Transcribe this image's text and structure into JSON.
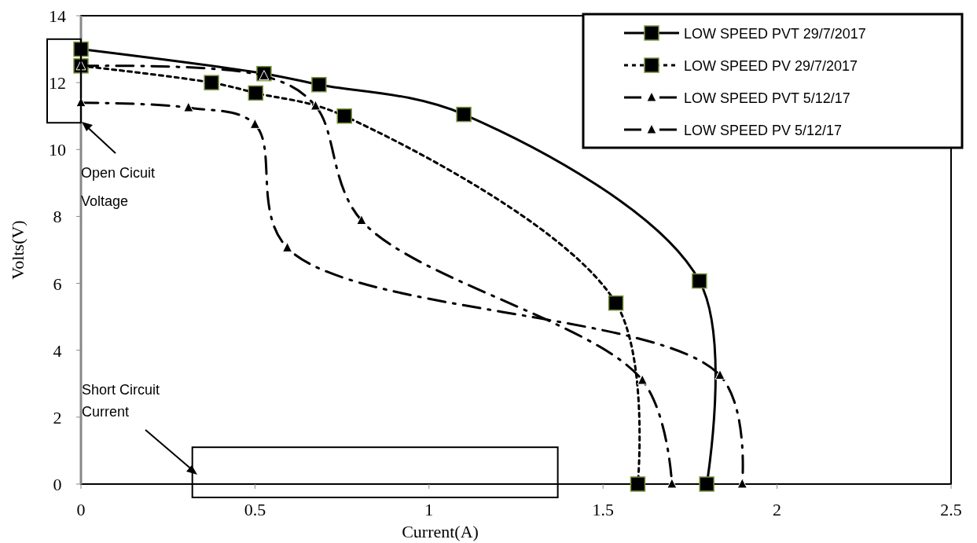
{
  "chart_data": {
    "type": "line",
    "xlabel": "Current(A)",
    "ylabel": "Volts(V)",
    "xlim": [
      0,
      2.5
    ],
    "xticks": [
      0,
      0.5,
      1,
      1.5,
      2,
      2.5
    ],
    "ylim": [
      0,
      14
    ],
    "yticks": [
      0,
      2,
      4,
      6,
      8,
      10,
      12,
      14
    ],
    "grid": false,
    "legend": "top right",
    "annotations": [
      "Open Cicuit Voltage",
      "Short Circuit Current"
    ],
    "series": [
      {
        "name": "LOW SPEED PVT 29/7/2017",
        "color": "#000000",
        "marker": "square",
        "line_style": "solid",
        "x": [
          0,
          0.526,
          0.684,
          1.1,
          1.777,
          1.798
        ],
        "values": [
          13.0,
          12.27,
          11.94,
          11.05,
          6.07,
          0
        ]
      },
      {
        "name": "LOW SPEED PV 29/7/2017",
        "color": "#000000",
        "marker": "square",
        "line_style": "dotted",
        "x": [
          0,
          0.375,
          0.502,
          0.757,
          1.537,
          1.6
        ],
        "values": [
          12.5,
          12.0,
          11.69,
          11.0,
          5.41,
          0
        ]
      },
      {
        "name": "LOW SPEED PVT 5/12/17",
        "color": "#000000",
        "marker": "triangle",
        "line_style": "dashed",
        "x": [
          0,
          0.526,
          0.674,
          0.806,
          1.613,
          1.698
        ],
        "values": [
          12.5,
          12.2,
          11.3,
          7.88,
          3.1,
          0
        ]
      },
      {
        "name": "LOW SPEED PV 5/12/17",
        "color": "#000000",
        "marker": "triangle",
        "line_style": "dashed",
        "x": [
          0,
          0.309,
          0.5,
          0.593,
          1.836,
          1.9
        ],
        "values": [
          11.4,
          11.25,
          10.75,
          7.06,
          3.25,
          0
        ]
      }
    ]
  }
}
